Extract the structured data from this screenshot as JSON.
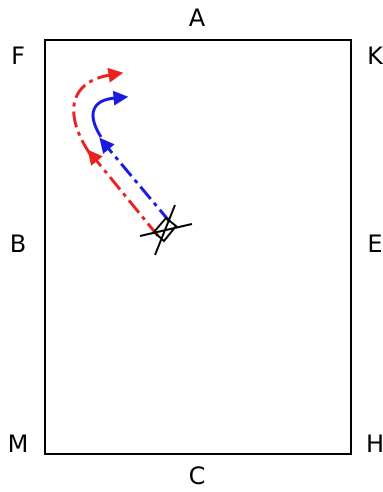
{
  "arena": {
    "letters": {
      "A": "A",
      "C": "C",
      "F": "F",
      "K": "K",
      "B": "B",
      "E": "E",
      "M": "M",
      "H": "H"
    }
  },
  "paths": {
    "red_color": "#e8231f",
    "blue_color": "#1a1ae0",
    "line_style": "dash-dot"
  },
  "marker": {
    "icon": "crossed-rhombus"
  }
}
